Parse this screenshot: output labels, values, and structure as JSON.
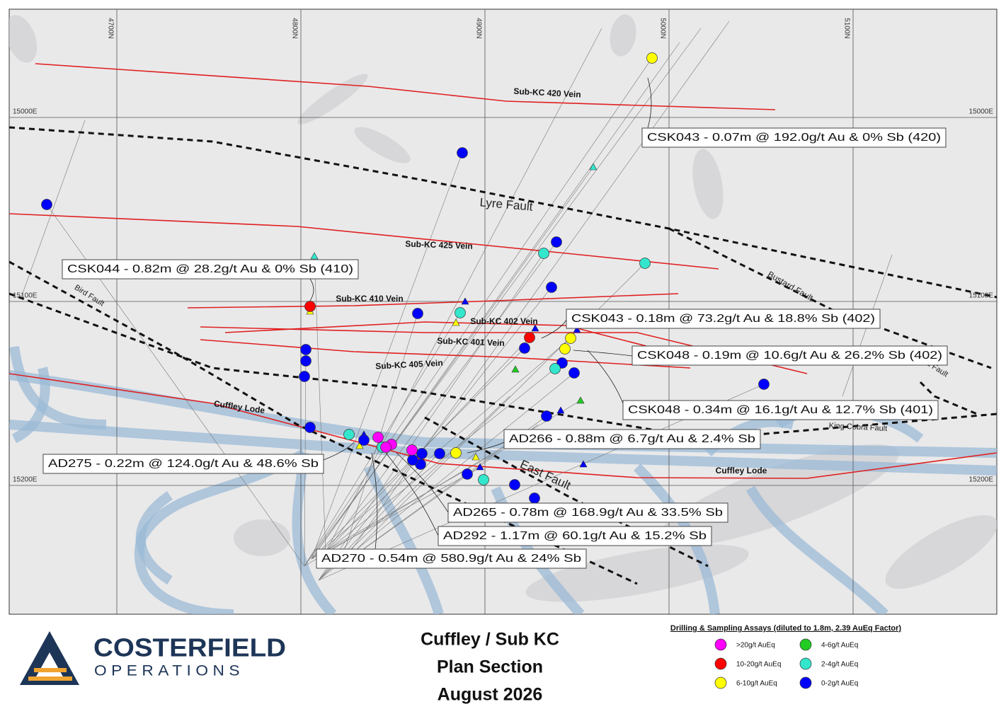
{
  "map": {
    "grid": {
      "northings": [
        "4700N",
        "4800N",
        "4900N",
        "5000N",
        "5100N"
      ],
      "eastings": [
        "15000E",
        "15100E",
        "15200E"
      ]
    },
    "veins": [
      "Sub-KC 420 Vein",
      "Sub-KC 425 Vein",
      "Sub-KC 410 Vein",
      "Sub-KC 402 Vein",
      "Sub-KC 401 Vein",
      "Sub-KC 405 Vein"
    ],
    "lodes": [
      "Cuffley Lode",
      "Cuffley Lode"
    ],
    "faults": [
      "Lyre Fault",
      "Bustard Fault",
      "Bird Fault",
      "Bird Fault",
      "King Cobra Fault",
      "East Fault"
    ],
    "callouts": [
      "CSK043 - 0.07m @ 192.0g/t Au & 0% Sb (420)",
      "CSK044 - 0.82m @ 28.2g/t Au & 0% Sb (410)",
      "CSK043 - 0.18m @ 73.2g/t Au & 18.8% Sb (402)",
      "CSK048 - 0.19m @ 10.6g/t Au & 26.2% Sb (402)",
      "CSK048 - 0.34m @ 16.1g/t Au & 12.7% Sb (401)",
      "AD266 - 0.88m @ 6.7g/t Au & 2.4% Sb",
      "AD275 - 0.22m @ 124.0g/t Au & 48.6% Sb",
      "AD265 - 0.78m @ 168.9g/t Au & 33.5% Sb",
      "AD292 - 1.17m @ 60.1g/t Au & 15.2% Sb",
      "AD270 - 0.54m @ 580.9g/t Au & 24% Sb"
    ]
  },
  "logo": {
    "name": "COSTERFIELD",
    "subtitle": "OPERATIONS"
  },
  "title": [
    "Cuffley / Sub KC",
    "Plan Section",
    "August 2026"
  ],
  "legend": {
    "title": "Drilling & Sampling Assays (diluted to 1.8m, 2.39 AuEq Factor)",
    "items": [
      {
        "label": ">20g/t AuEq",
        "color": "#ff00ff"
      },
      {
        "label": "10-20g/t AuEq",
        "color": "#ff0000"
      },
      {
        "label": "6-10g/t AuEq",
        "color": "#ffff00"
      },
      {
        "label": "4-6g/t AuEq",
        "color": "#22cc22"
      },
      {
        "label": "2-4g/t AuEq",
        "color": "#33e6cc"
      },
      {
        "label": "0-2g/t AuEq",
        "color": "#0000ff"
      }
    ]
  }
}
